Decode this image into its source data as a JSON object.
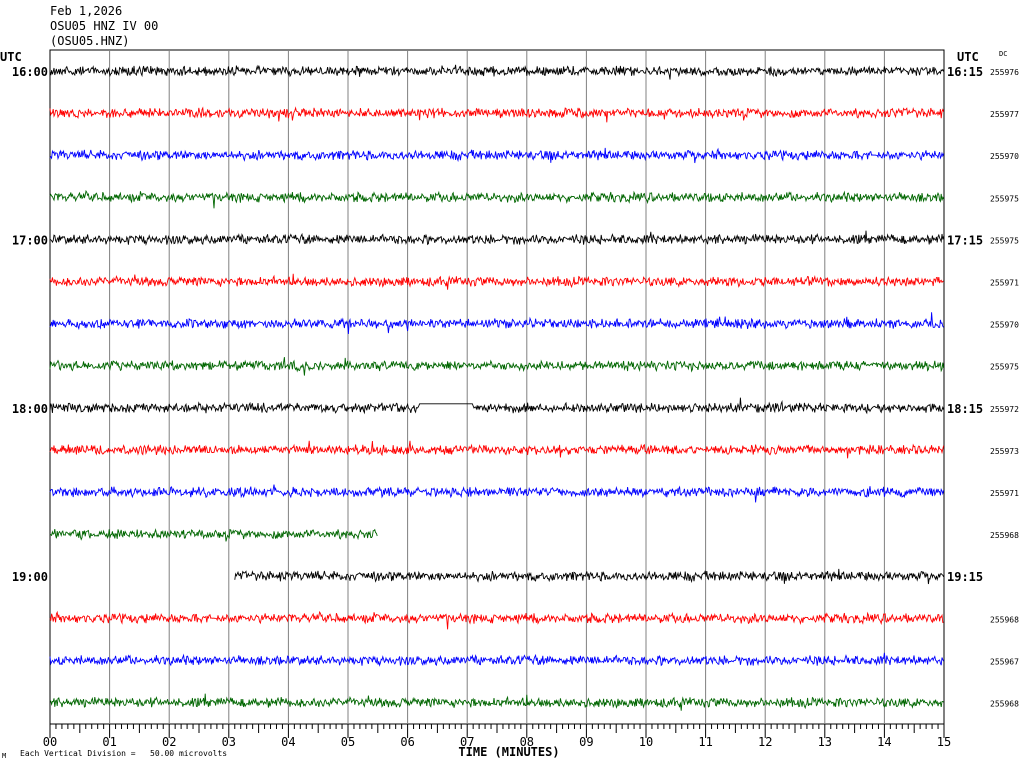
{
  "header": {
    "date": "Feb 1,2026",
    "station": "OSU05 HNZ IV 00",
    "channel": "(OSU05.HNZ)"
  },
  "utc_left": "UTC",
  "utc_right": "UTC",
  "dc_label": "DC",
  "footer": {
    "scale_note": "Each Vertical Division =   50.00 microvolts",
    "corner_mark": "M"
  },
  "colors": {
    "black": "#000000",
    "red": "#ff0000",
    "blue": "#0000ff",
    "green": "#006600",
    "grid": "#808080"
  },
  "chart_data": {
    "type": "line",
    "title": "Feb 1,2026 OSU05 HNZ IV 00 (OSU05.HNZ)",
    "xlabel": "TIME (MINUTES)",
    "x_ticks": [
      "00",
      "01",
      "02",
      "03",
      "04",
      "05",
      "06",
      "07",
      "08",
      "09",
      "10",
      "11",
      "12",
      "13",
      "14",
      "15"
    ],
    "xlim": [
      0,
      15
    ],
    "grid": true,
    "units": "microvolts",
    "vertical_division": 50.0,
    "traces": [
      {
        "left": "16:00",
        "right": "16:15",
        "dc": "255976",
        "color": "black",
        "start": 0,
        "end": 15
      },
      {
        "left": "",
        "right": "",
        "dc": "255977",
        "color": "red",
        "start": 0,
        "end": 15
      },
      {
        "left": "",
        "right": "",
        "dc": "255970",
        "color": "blue",
        "start": 0,
        "end": 15
      },
      {
        "left": "",
        "right": "",
        "dc": "255975",
        "color": "green",
        "start": 0,
        "end": 15
      },
      {
        "left": "17:00",
        "right": "17:15",
        "dc": "255975",
        "color": "black",
        "start": 0,
        "end": 15
      },
      {
        "left": "",
        "right": "",
        "dc": "255971",
        "color": "red",
        "start": 0,
        "end": 15
      },
      {
        "left": "",
        "right": "",
        "dc": "255970",
        "color": "blue",
        "start": 0,
        "end": 15
      },
      {
        "left": "",
        "right": "",
        "dc": "255975",
        "color": "green",
        "start": 0,
        "end": 15
      },
      {
        "left": "18:00",
        "right": "18:15",
        "dc": "255972",
        "color": "black",
        "start": 0,
        "end": 15,
        "flat": [
          6.2,
          7.1
        ]
      },
      {
        "left": "",
        "right": "",
        "dc": "255973",
        "color": "red",
        "start": 0,
        "end": 15
      },
      {
        "left": "",
        "right": "",
        "dc": "255971",
        "color": "blue",
        "start": 0,
        "end": 15
      },
      {
        "left": "",
        "right": "",
        "dc": "255968",
        "color": "green",
        "start": 0,
        "end": 5.5
      },
      {
        "left": "19:00",
        "right": "19:15",
        "dc": "",
        "color": "black",
        "start": 3.1,
        "end": 15
      },
      {
        "left": "",
        "right": "",
        "dc": "255968",
        "color": "red",
        "start": 0,
        "end": 15
      },
      {
        "left": "",
        "right": "",
        "dc": "255967",
        "color": "blue",
        "start": 0,
        "end": 15
      },
      {
        "left": "",
        "right": "",
        "dc": "255968",
        "color": "green",
        "start": 0,
        "end": 15
      }
    ]
  }
}
